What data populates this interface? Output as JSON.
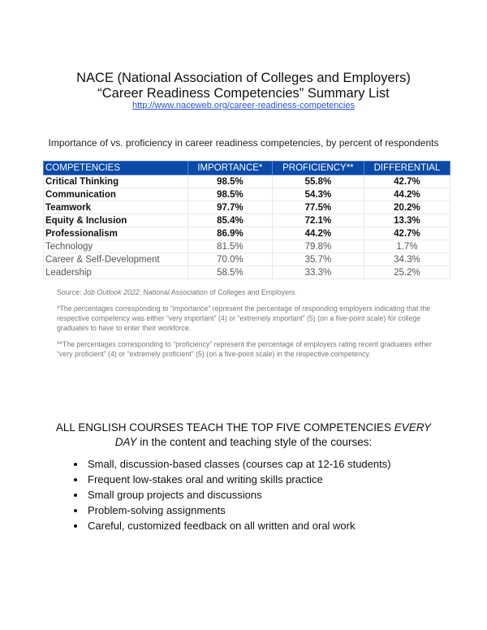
{
  "header": {
    "title_line1": "NACE (National Association of Colleges and Employers)",
    "title_line2": "“Career Readiness Competencies” Summary List",
    "link": "http://www.naceweb.org/career-readiness-competencies"
  },
  "subtitle": "Importance of vs. proficiency in career readiness competencies, by percent of respondents",
  "table": {
    "headers": [
      "COMPETENCIES",
      "IMPORTANCE*",
      "PROFICIENCY**",
      "DIFFERENTIAL"
    ],
    "header_color": "#0b4aa8",
    "rows": [
      [
        "Critical Thinking",
        "98.5%",
        "55.8%",
        "42.7%"
      ],
      [
        "Communication",
        "98.5%",
        "54.3%",
        "44.2%"
      ],
      [
        "Teamwork",
        "97.7%",
        "77.5%",
        "20.2%"
      ],
      [
        "Equity & Inclusion",
        "85.4%",
        "72.1%",
        "13.3%"
      ],
      [
        "Professionalism",
        "86.9%",
        "44.2%",
        "42.7%"
      ],
      [
        "Technology",
        "81.5%",
        "79.8%",
        "1.7%"
      ],
      [
        "Career & Self-Development",
        "70.0%",
        "35.7%",
        "34.3%"
      ],
      [
        "Leadership",
        "58.5%",
        "33.3%",
        "25.2%"
      ]
    ]
  },
  "notes": {
    "source_prefix": "Source: ",
    "source_title": "Job Outlook 2022",
    "source_suffix": ", National Association of Colleges and Employers.",
    "note1": "*The percentages corresponding to “importance” represent the percentage of responding employers indicating that the respective competency was either “very important” (4) or “extremely important” (5) (on a five-point scale) for college graduates to have to enter their workforce.",
    "note2": "**The percentages corresponding to “proficiency” represent the percentage of employers rating recent graduates either “very proficient” (4) or “extremely proficient” (5) (on a five-point scale) in the respective competency."
  },
  "courses": {
    "heading_a": "ALL ENGLISH COURSES TEACH THE TOP FIVE COMPETENCIES ",
    "heading_em": "EVERY DAY",
    "heading_b": " in the content and teaching style of the courses:",
    "bullets": [
      "Small, discussion-based classes (courses cap at 12-16 students)",
      "Frequent low-stakes oral and writing skills practice",
      "Small group projects and discussions",
      "Problem-solving assignments",
      "Careful, customized feedback on all written and oral work"
    ]
  }
}
